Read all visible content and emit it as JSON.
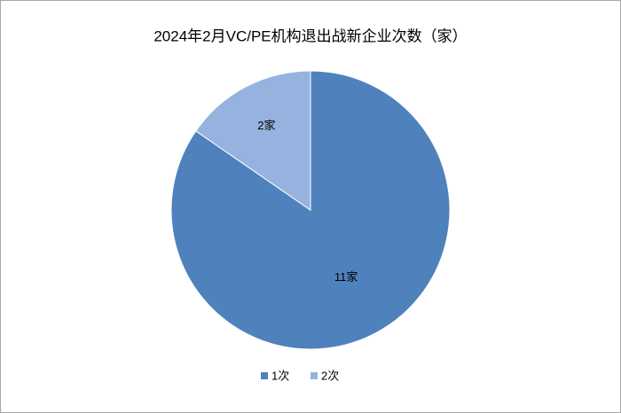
{
  "chart_data": {
    "type": "pie",
    "title": "2024年2月VC/PE机构退出战新企业次数（家）",
    "categories": [
      "1次",
      "2次"
    ],
    "values": [
      11,
      2
    ],
    "value_labels": [
      "11家",
      "2家"
    ],
    "colors": [
      "#4f81bd",
      "#95b3de"
    ],
    "legend": "bottom"
  }
}
